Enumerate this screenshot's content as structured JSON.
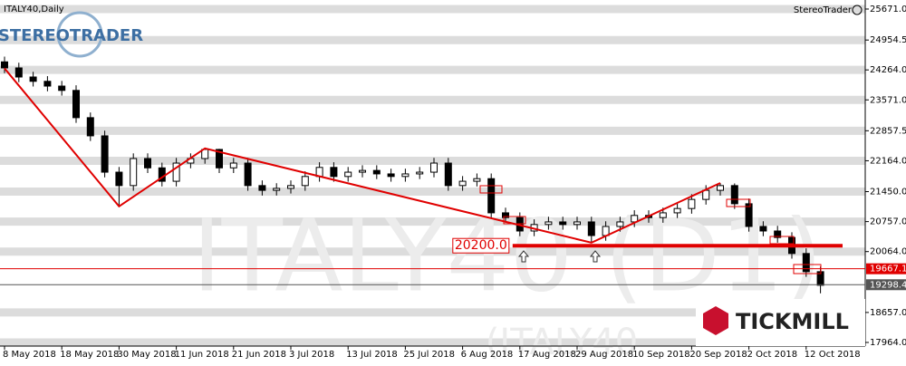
{
  "chart_data": {
    "type": "candlestick",
    "title": "ITALY40,Daily",
    "brand": "StereoTrader",
    "watermark": "ITALY40 (D1)",
    "watermark_bottom": "(ITALY40",
    "logo_left": "STEREOTRADER",
    "logo_right": "TICKMILL",
    "categories": [
      "8 May 2018",
      null,
      null,
      null,
      "18 May 2018",
      null,
      null,
      null,
      "30 May 2018",
      null,
      null,
      null,
      "11 Jun 2018",
      null,
      null,
      null,
      "21 Jun 2018",
      null,
      null,
      null,
      "3 Jul 2018",
      null,
      null,
      null,
      "13 Jul 2018",
      null,
      null,
      null,
      "25 Jul 2018",
      null,
      null,
      null,
      "6 Aug 2018",
      null,
      null,
      null,
      "17 Aug 2018",
      null,
      null,
      null,
      "29 Aug 2018",
      null,
      null,
      null,
      "10 Sep 2018",
      null,
      null,
      null,
      "20 Sep 2018",
      null,
      null,
      null,
      "2 Oct 2018",
      null,
      null,
      null,
      "12 Oct 2018",
      null
    ],
    "open": [
      24450,
      24310,
      24100,
      24000,
      23890,
      23790,
      23160,
      22740,
      21900,
      21590,
      22215,
      22000,
      21690,
      22110,
      22215,
      22425,
      22000,
      22110,
      21590,
      21480,
      21525,
      21590,
      21800,
      22010,
      21800,
      21900,
      21940,
      21860,
      21800,
      21860,
      21900,
      22110,
      21590,
      21690,
      21750,
      20960,
      20850,
      20540,
      20690,
      20750,
      20690,
      20750,
      20435,
      20645,
      20750,
      20900,
      20850,
      20960,
      21060,
      21270,
      21480,
      21590,
      21170,
      20645,
      20540,
      20390,
      20020,
      19600
    ],
    "high": [
      24570,
      24430,
      24220,
      24120,
      24010,
      23910,
      23280,
      22860,
      22020,
      22335,
      22335,
      22120,
      22230,
      22335,
      22450,
      22440,
      22230,
      22230,
      21710,
      21645,
      21710,
      21920,
      22130,
      22130,
      22020,
      22060,
      22060,
      21980,
      21980,
      22020,
      22230,
      22230,
      21810,
      21870,
      21870,
      21080,
      20970,
      20810,
      20870,
      20870,
      20870,
      20870,
      20765,
      20870,
      21020,
      21020,
      21080,
      21180,
      21390,
      21600,
      21650,
      21640,
      21290,
      20765,
      20660,
      20510,
      20140,
      19720
    ],
    "low": [
      24190,
      23980,
      23880,
      23770,
      23670,
      23040,
      22620,
      21780,
      21110,
      21470,
      21880,
      21570,
      21570,
      21990,
      22095,
      21880,
      21880,
      21470,
      21360,
      21360,
      21405,
      21470,
      21680,
      21680,
      21680,
      21780,
      21740,
      21680,
      21680,
      21740,
      21780,
      21470,
      21470,
      21570,
      20840,
      20730,
      20420,
      20420,
      20570,
      20570,
      20570,
      20270,
      20315,
      20525,
      20630,
      20730,
      20730,
      20840,
      20940,
      21150,
      21360,
      21050,
      20525,
      20420,
      20270,
      19900,
      19480,
      19100
    ],
    "close": [
      24310,
      24100,
      24000,
      23890,
      23790,
      23160,
      22740,
      21900,
      21590,
      22215,
      22000,
      21690,
      22110,
      22215,
      22425,
      22000,
      22110,
      21590,
      21480,
      21525,
      21590,
      21800,
      22010,
      21800,
      21900,
      21940,
      21860,
      21800,
      21860,
      21900,
      22110,
      21590,
      21690,
      21750,
      20960,
      20850,
      20540,
      20690,
      20750,
      20690,
      20750,
      20435,
      20645,
      20750,
      20900,
      20850,
      20960,
      21060,
      21270,
      21480,
      21590,
      21170,
      20645,
      20540,
      20390,
      20020,
      19600,
      19285
    ],
    "zigzag": {
      "color": "#e00000",
      "x": [
        0,
        8,
        14,
        41,
        50
      ],
      "values": [
        24300,
        21110,
        22450,
        20270,
        21650
      ]
    },
    "levels": [
      {
        "value": 20200,
        "label": "20200.0",
        "color": "#e00000",
        "start": 36
      },
      {
        "value": 19667.1,
        "color": "#e00000"
      },
      {
        "value": 19298.4,
        "color": "#555555"
      }
    ],
    "ylim": [
      17880,
      25880
    ],
    "yticks": [
      {
        "value": 25671,
        "label": "25671.0"
      },
      24954.5,
      {
        "value": 24264,
        "label": "24264.0"
      },
      {
        "value": 23571,
        "label": "23571.0"
      },
      22857.5,
      {
        "value": 22164,
        "label": "22164.0"
      },
      {
        "value": 21450,
        "label": "21450.0"
      },
      {
        "value": 20757,
        "label": "20757.0"
      },
      {
        "value": 20064,
        "label": "20064.0"
      },
      {
        "value": 18657,
        "label": "18657.0"
      },
      {
        "value": 17964,
        "label": "17964.0"
      }
    ],
    "grid": true
  }
}
